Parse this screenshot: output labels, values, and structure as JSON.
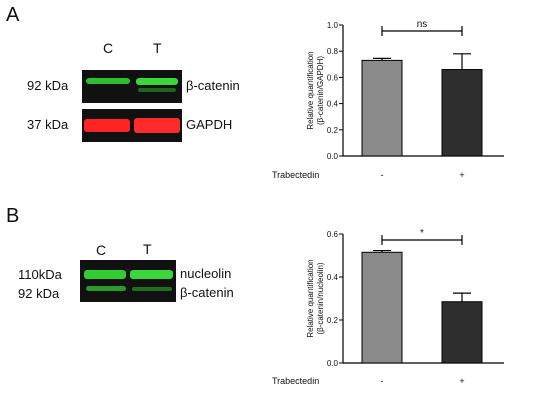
{
  "panel_a": {
    "letter": "A",
    "lanes": [
      "C",
      "T"
    ],
    "markers": [
      "92 kDa",
      "37 kDa"
    ],
    "proteins": [
      "β-catenin",
      "GAPDH"
    ]
  },
  "panel_b": {
    "letter": "B",
    "lanes": [
      "C",
      "T"
    ],
    "markers": [
      "110kDa",
      "92 kDa"
    ],
    "proteins": [
      "nucleolin",
      "β-catenin"
    ]
  },
  "colors": {
    "control_bar": "#8a8a8a",
    "treated_bar": "#2e2e2e",
    "green_band": "#33cc33",
    "red_band": "#ff2a2a"
  },
  "chart_data": [
    {
      "type": "bar",
      "categories": [
        "-",
        "+"
      ],
      "category_axis_label": "Trabectedin",
      "ylabel": "Relative quantification (β-catenin/GAPDH)",
      "ylim": [
        0,
        1.0
      ],
      "yticks": [
        "0.0",
        "0.2",
        "0.4",
        "0.6",
        "0.8",
        "1.0"
      ],
      "yticks_values": [
        0,
        0.2,
        0.4,
        0.6,
        0.8,
        1.0
      ],
      "values": [
        0.73,
        0.66
      ],
      "errors": [
        0.015,
        0.12
      ],
      "significance": "ns"
    },
    {
      "type": "bar",
      "categories": [
        "-",
        "+"
      ],
      "category_axis_label": "Trabectedin",
      "ylabel": "Relative quantification (β-catenin/nucleolin)",
      "ylim": [
        0,
        0.6
      ],
      "yticks": [
        "0.0",
        "0.2",
        "0.4",
        "0.6"
      ],
      "yticks_values": [
        0,
        0.2,
        0.4,
        0.6
      ],
      "values": [
        0.515,
        0.285
      ],
      "errors": [
        0.008,
        0.04
      ],
      "significance": "*"
    }
  ]
}
